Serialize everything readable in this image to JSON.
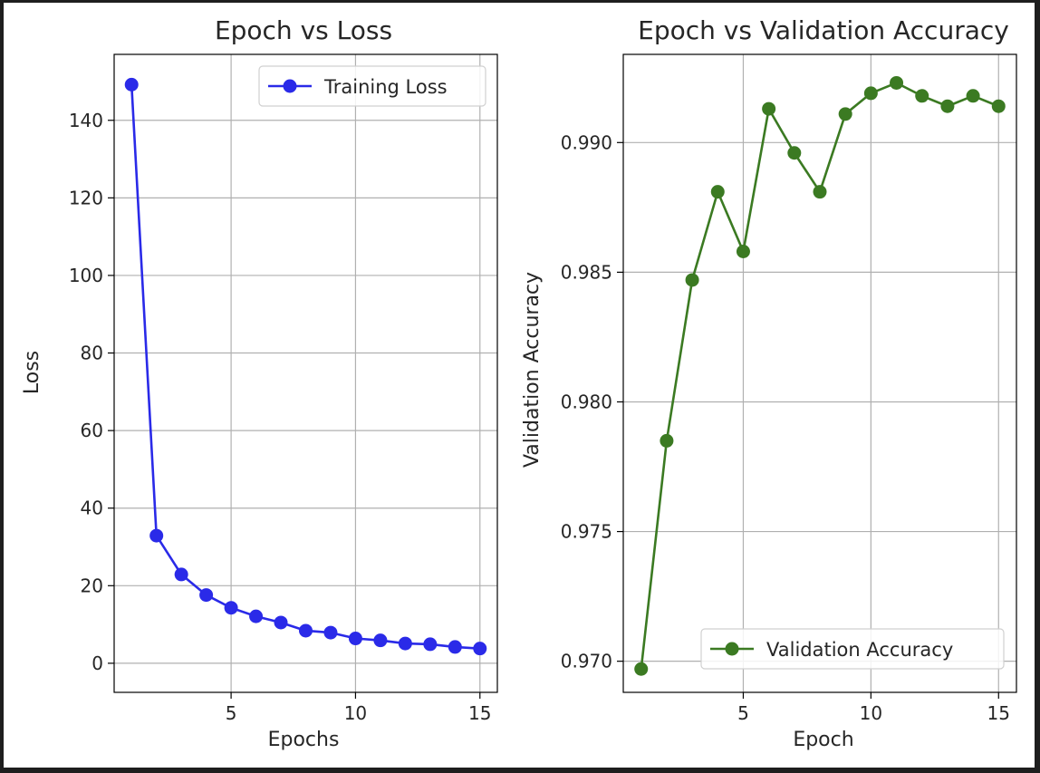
{
  "chart_data": [
    {
      "type": "line",
      "title": "Epoch vs Loss",
      "xlabel": "Epochs",
      "ylabel": "Loss",
      "x": [
        1,
        2,
        3,
        4,
        5,
        6,
        7,
        8,
        9,
        10,
        11,
        12,
        13,
        14,
        15
      ],
      "series": [
        {
          "name": "Training Loss",
          "color": "#2a2ae8",
          "marker": "circle",
          "values": [
            149.2,
            32.9,
            22.9,
            17.6,
            14.3,
            12.1,
            10.5,
            8.4,
            7.9,
            6.4,
            5.9,
            5.1,
            4.9,
            4.2,
            3.8
          ]
        }
      ],
      "xlim": [
        0.3,
        15.7
      ],
      "ylim": [
        -7.5,
        157
      ],
      "xticks": [
        5,
        10,
        15
      ],
      "yticks": [
        0,
        20,
        40,
        60,
        80,
        100,
        120,
        140
      ],
      "xtick_labels": [
        "5",
        "10",
        "15"
      ],
      "ytick_labels": [
        "0",
        "20",
        "40",
        "60",
        "80",
        "100",
        "120",
        "140"
      ],
      "grid": true,
      "legend": "top-right"
    },
    {
      "type": "line",
      "title": "Epoch vs Validation Accuracy",
      "xlabel": "Epoch",
      "ylabel": "Validation Accuracy",
      "x": [
        1,
        2,
        3,
        4,
        5,
        6,
        7,
        8,
        9,
        10,
        11,
        12,
        13,
        14,
        15
      ],
      "series": [
        {
          "name": "Validation Accuracy",
          "color": "#3b7a22",
          "marker": "circle",
          "values": [
            0.9697,
            0.9785,
            0.9847,
            0.9881,
            0.9858,
            0.9913,
            0.9896,
            0.9881,
            0.9911,
            0.9919,
            0.9923,
            0.9918,
            0.9914,
            0.9918,
            0.9914
          ]
        }
      ],
      "xlim": [
        0.3,
        15.7
      ],
      "ylim": [
        0.9688,
        0.9934
      ],
      "xticks": [
        5,
        10,
        15
      ],
      "yticks": [
        0.97,
        0.975,
        0.98,
        0.985,
        0.99
      ],
      "xtick_labels": [
        "5",
        "10",
        "15"
      ],
      "ytick_labels": [
        "0.970",
        "0.975",
        "0.980",
        "0.985",
        "0.990"
      ],
      "grid": true,
      "legend": "bottom-right"
    }
  ]
}
